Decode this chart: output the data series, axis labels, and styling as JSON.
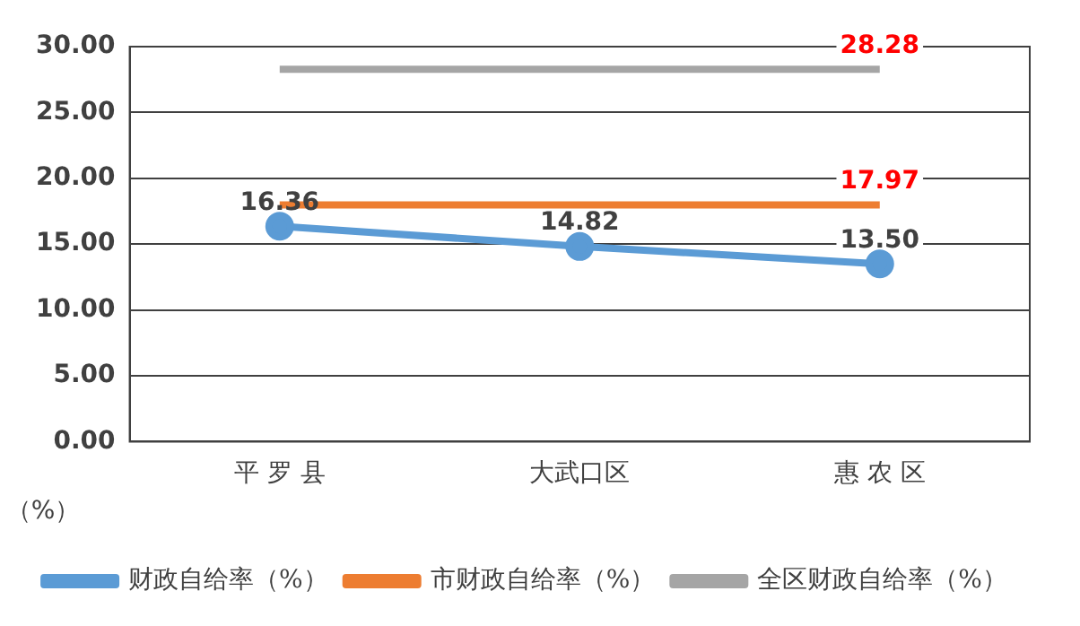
{
  "chart_data": {
    "type": "line",
    "ylabel": "（%）",
    "categories": [
      "平 罗 县",
      "大武口区",
      "惠 农 区"
    ],
    "series": [
      {
        "name": "财政自给率（%）",
        "color": "#5b9bd5",
        "values": [
          16.36,
          14.82,
          13.5
        ],
        "value_labels": [
          "16.36",
          "14.82",
          "13.50"
        ],
        "marker": "circle"
      },
      {
        "name": "市财政自给率（%）",
        "color": "#ed7d31",
        "values": [
          17.97,
          17.97,
          17.97
        ],
        "value_labels": [
          null,
          null,
          "17.97"
        ],
        "marker": "none"
      },
      {
        "name": "全区财政自给率（%）",
        "color": "#a5a5a5",
        "values": [
          28.28,
          28.28,
          28.28
        ],
        "value_labels": [
          null,
          null,
          "28.28"
        ],
        "marker": "none"
      }
    ],
    "ylim": [
      0,
      30
    ],
    "yticks": [
      {
        "value": 0,
        "label": "0.00"
      },
      {
        "value": 5,
        "label": "5.00"
      },
      {
        "value": 10,
        "label": "10.00"
      },
      {
        "value": 15,
        "label": "15.00"
      },
      {
        "value": 20,
        "label": "20.00"
      },
      {
        "value": 25,
        "label": "25.00"
      },
      {
        "value": 30,
        "label": "30.00"
      }
    ],
    "grid": "y",
    "legend": "bottom",
    "line_style": "solid"
  }
}
